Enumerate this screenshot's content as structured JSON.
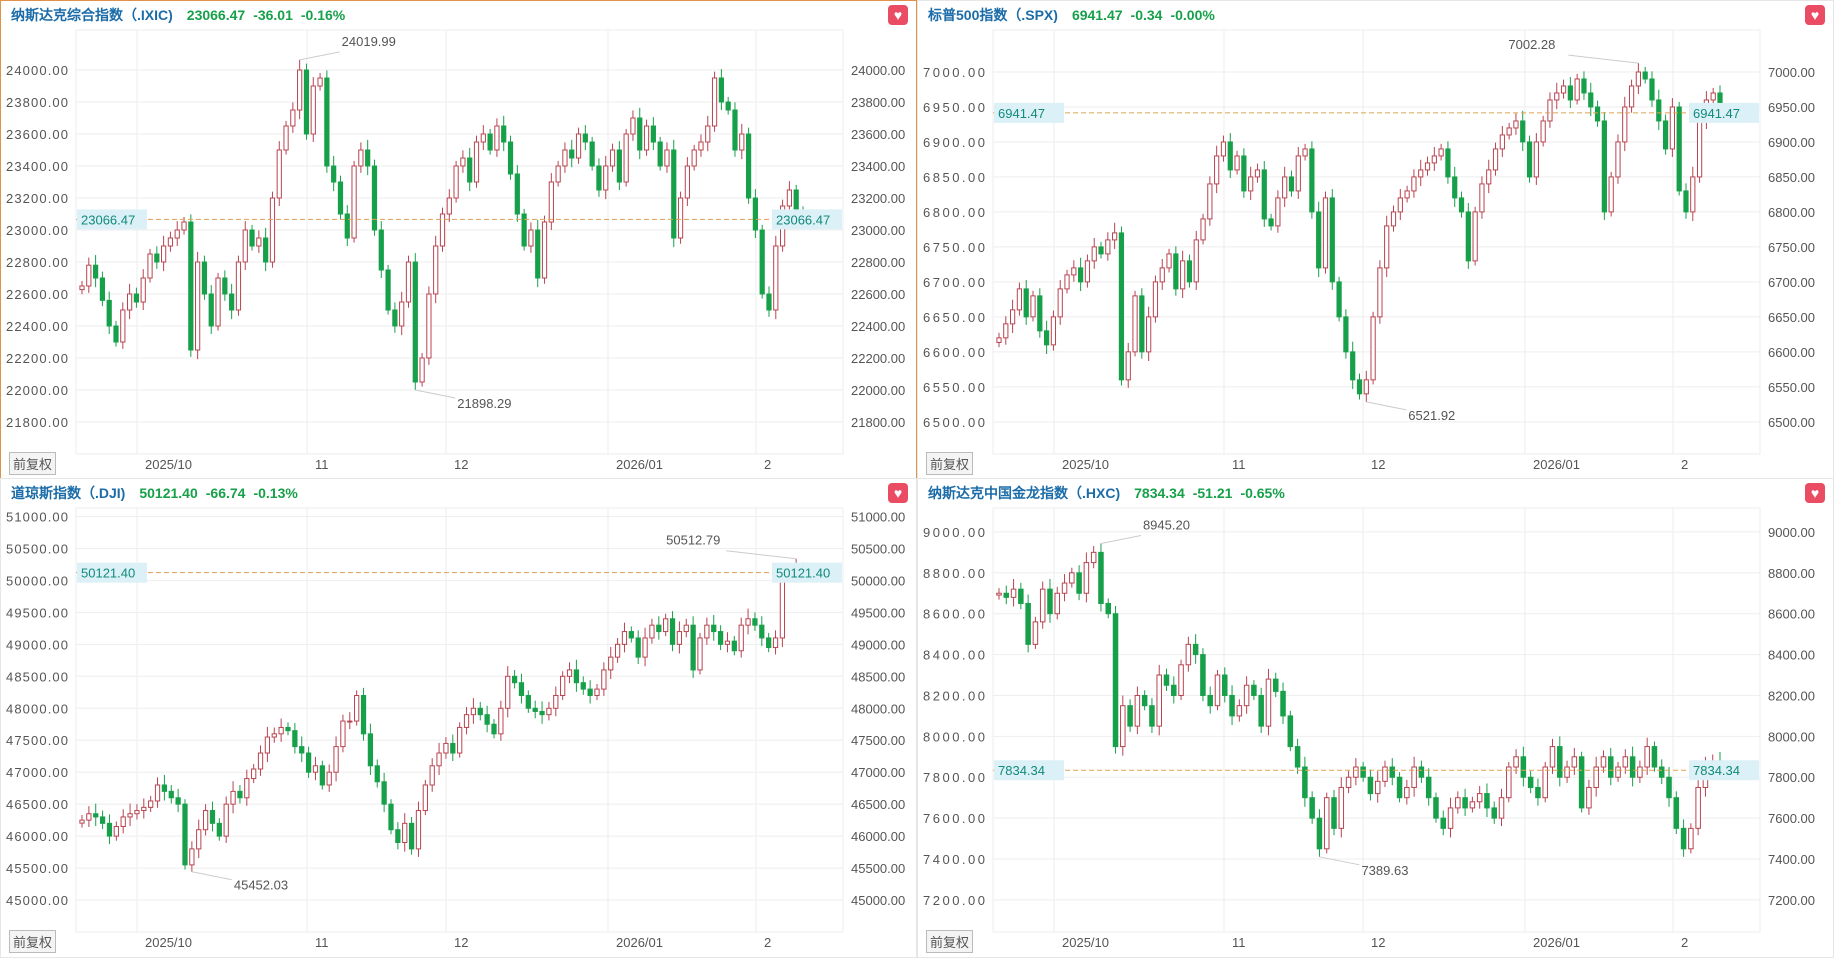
{
  "common": {
    "adjust_button": "前复权",
    "heart_icon": "heart-icon",
    "x_ticks": [
      "2025/10",
      "11",
      "12",
      "2026/01",
      "2"
    ],
    "colors": {
      "up": "#b84450",
      "down": "#17a04a",
      "price_line": "#e0a050",
      "title": "#1b6ca8",
      "value": "#17a04a",
      "price_label_bg": "#dcf1f7"
    }
  },
  "chart_data": [
    {
      "type": "candlestick",
      "title": "纳斯达克综合指数（.IXIC)",
      "last": "23066.47",
      "change": "-36.01",
      "change_pct": "-0.16%",
      "ylim": [
        21600,
        24250
      ],
      "yticks": [
        21800,
        22000,
        22200,
        22400,
        22600,
        22800,
        23000,
        23200,
        23400,
        23600,
        23800,
        24000
      ],
      "high": "24019.99",
      "low": "21898.29",
      "selected": true,
      "close": [
        22650,
        22780,
        22700,
        22560,
        22400,
        22300,
        22500,
        22600,
        22550,
        22700,
        22850,
        22800,
        22900,
        22950,
        23000,
        23050,
        22250,
        22800,
        22600,
        22400,
        22700,
        22600,
        22500,
        22800,
        23000,
        22900,
        22950,
        22800,
        23200,
        23500,
        23650,
        23750,
        24000,
        23600,
        23900,
        23950,
        23400,
        23300,
        23100,
        22950,
        23400,
        23500,
        23400,
        23000,
        22750,
        22500,
        22400,
        22550,
        22800,
        22050,
        22200,
        22600,
        22900,
        23100,
        23200,
        23400,
        23450,
        23300,
        23550,
        23600,
        23500,
        23650,
        23550,
        23350,
        23100,
        22900,
        23000,
        22700,
        23050,
        23300,
        23400,
        23500,
        23450,
        23600,
        23550,
        23400,
        23250,
        23400,
        23500,
        23300,
        23600,
        23700,
        23500,
        23650,
        23550,
        23400,
        23500,
        22950,
        23200,
        23400,
        23500,
        23550,
        23650,
        23950,
        23800,
        23750,
        23500,
        23600,
        23200,
        23000,
        22600,
        22500,
        22900,
        23150,
        23250,
        23100,
        23066.47
      ]
    },
    {
      "type": "candlestick",
      "title": "标普500指数（.SPX)",
      "last": "6941.47",
      "change": "-0.34",
      "change_pct": "-0.00%",
      "ylim": [
        6454,
        7060
      ],
      "yticks": [
        6500,
        6550,
        6600,
        6650,
        6700,
        6750,
        6800,
        6850,
        6900,
        6950,
        7000
      ],
      "high": "7002.28",
      "low": "6521.92",
      "close": [
        6620,
        6640,
        6660,
        6690,
        6650,
        6680,
        6630,
        6610,
        6650,
        6690,
        6710,
        6720,
        6700,
        6730,
        6750,
        6740,
        6760,
        6770,
        6560,
        6600,
        6680,
        6600,
        6650,
        6700,
        6720,
        6740,
        6690,
        6730,
        6700,
        6760,
        6790,
        6840,
        6880,
        6900,
        6860,
        6880,
        6830,
        6850,
        6860,
        6790,
        6780,
        6820,
        6850,
        6830,
        6880,
        6890,
        6800,
        6720,
        6820,
        6700,
        6650,
        6600,
        6560,
        6540,
        6560,
        6650,
        6720,
        6780,
        6800,
        6820,
        6830,
        6850,
        6860,
        6870,
        6880,
        6890,
        6850,
        6820,
        6800,
        6730,
        6800,
        6840,
        6860,
        6890,
        6910,
        6920,
        6930,
        6900,
        6850,
        6900,
        6930,
        6960,
        6970,
        6980,
        6960,
        6990,
        6970,
        6950,
        6930,
        6800,
        6850,
        6900,
        6950,
        6980,
        7000,
        6990,
        6960,
        6930,
        6890,
        6950,
        6830,
        6800,
        6850,
        6930,
        6960,
        6970,
        6941.47
      ]
    },
    {
      "type": "candlestick",
      "title": "道琼斯指数（.DJI)",
      "last": "50121.40",
      "change": "-66.74",
      "change_pct": "-0.13%",
      "ylim": [
        44500,
        51133
      ],
      "yticks": [
        45000,
        45500,
        46000,
        46500,
        47000,
        47500,
        48000,
        48500,
        49000,
        49500,
        50000,
        50500,
        51000
      ],
      "high": "50512.79",
      "low": "45452.03",
      "close": [
        46250,
        46350,
        46300,
        46200,
        46000,
        46150,
        46300,
        46350,
        46400,
        46450,
        46550,
        46800,
        46700,
        46600,
        46500,
        45550,
        45800,
        46100,
        46400,
        46200,
        46000,
        46500,
        46700,
        46600,
        46900,
        47050,
        47300,
        47550,
        47600,
        47700,
        47650,
        47400,
        47300,
        47000,
        47100,
        46800,
        47000,
        47400,
        47800,
        47800,
        48200,
        47600,
        47100,
        46850,
        46500,
        46100,
        45900,
        46200,
        45800,
        46400,
        46800,
        47100,
        47300,
        47450,
        47300,
        47700,
        47900,
        48000,
        47900,
        47750,
        47600,
        48000,
        48500,
        48400,
        48200,
        48000,
        47950,
        47900,
        48000,
        48200,
        48500,
        48600,
        48400,
        48300,
        48200,
        48300,
        48600,
        48800,
        49000,
        49200,
        49100,
        48800,
        49100,
        49300,
        49200,
        49400,
        49000,
        49200,
        49300,
        48600,
        49100,
        49300,
        49200,
        49000,
        49050,
        48900,
        49300,
        49400,
        49300,
        49100,
        48950,
        49100,
        50100,
        50150,
        50200,
        50121.4
      ]
    },
    {
      "type": "candlestick",
      "title": "纳斯达克中国金龙指数（.HXC)",
      "last": "7834.34",
      "change": "-51.21",
      "change_pct": "-0.65%",
      "ylim": [
        7043,
        9117
      ],
      "yticks": [
        7200,
        7400,
        7600,
        7800,
        8000,
        8200,
        8400,
        8600,
        8800,
        9000
      ],
      "high": "8945.20",
      "low": "7389.63",
      "close": [
        8700,
        8680,
        8720,
        8650,
        8450,
        8560,
        8720,
        8600,
        8700,
        8750,
        8800,
        8700,
        8850,
        8900,
        8650,
        8600,
        7950,
        8150,
        8050,
        8200,
        8150,
        8050,
        8300,
        8250,
        8200,
        8350,
        8450,
        8400,
        8200,
        8150,
        8300,
        8200,
        8100,
        8150,
        8250,
        8200,
        8050,
        8280,
        8220,
        8100,
        7950,
        7850,
        7700,
        7600,
        7450,
        7700,
        7550,
        7750,
        7800,
        7850,
        7800,
        7720,
        7780,
        7850,
        7800,
        7700,
        7750,
        7850,
        7800,
        7700,
        7600,
        7550,
        7650,
        7700,
        7650,
        7680,
        7720,
        7650,
        7600,
        7700,
        7850,
        7900,
        7800,
        7750,
        7700,
        7850,
        7950,
        7800,
        7850,
        7900,
        7650,
        7750,
        7850,
        7900,
        7800,
        7850,
        7900,
        7800,
        7850,
        7950,
        7850,
        7800,
        7700,
        7550,
        7450,
        7550,
        7750,
        7850,
        7880,
        7834.34
      ]
    }
  ]
}
